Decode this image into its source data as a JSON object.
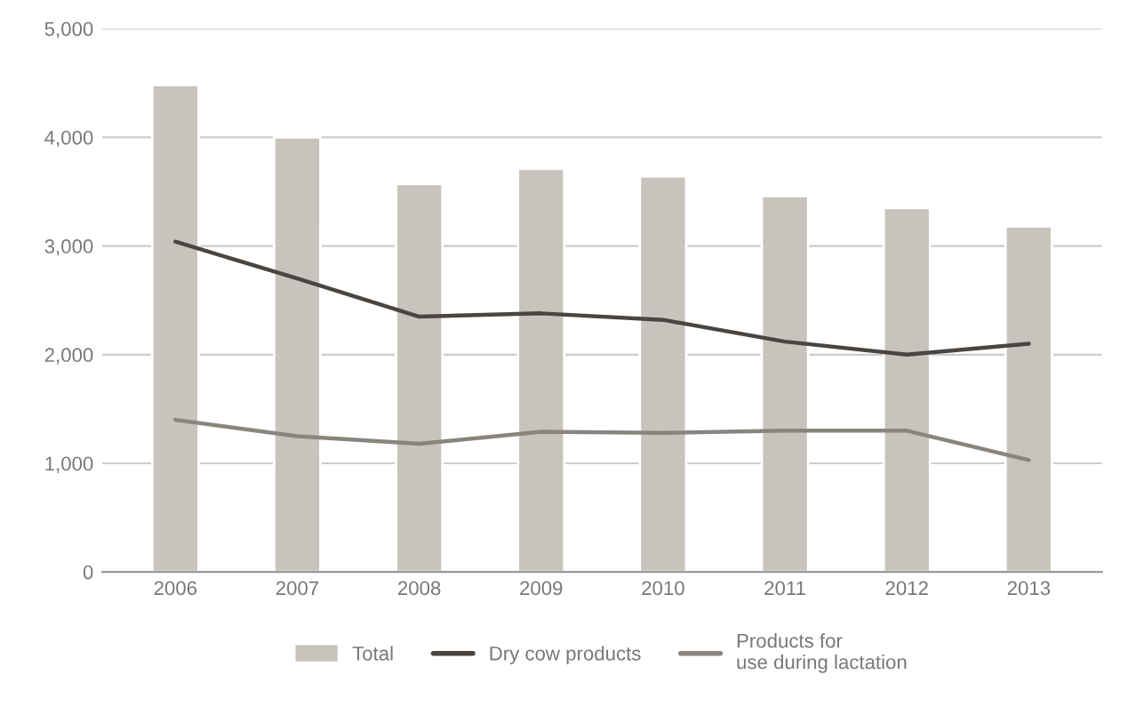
{
  "chart_data": {
    "type": "bar",
    "categories": [
      "2006",
      "2007",
      "2008",
      "2009",
      "2010",
      "2011",
      "2012",
      "2013"
    ],
    "series": [
      {
        "name": "Total",
        "color": "#c8c3bc",
        "values": [
          4480,
          4000,
          3570,
          3710,
          3640,
          3460,
          3350,
          3180
        ]
      },
      {
        "name": "Dry cow products",
        "type": "line",
        "color": "#4a4540",
        "values": [
          3040,
          2700,
          2350,
          2380,
          2320,
          2120,
          2000,
          2100
        ]
      },
      {
        "name": "Products for\nuse during lactation",
        "type": "line",
        "color": "#8a847e",
        "values": [
          1400,
          1250,
          1180,
          1290,
          1280,
          1300,
          1300,
          1030
        ]
      }
    ],
    "ylim": [
      0,
      5000
    ],
    "yticks": [
      {
        "value": 0,
        "label": "0"
      },
      {
        "value": 1000,
        "label": "1,000"
      },
      {
        "value": 2000,
        "label": "2,000"
      },
      {
        "value": 3000,
        "label": "3,000"
      },
      {
        "value": 4000,
        "label": "4,000"
      },
      {
        "value": 5000,
        "label": "5,000"
      }
    ],
    "grid": "y",
    "legend": "bottom",
    "marker": "none",
    "line_style": "solid"
  }
}
